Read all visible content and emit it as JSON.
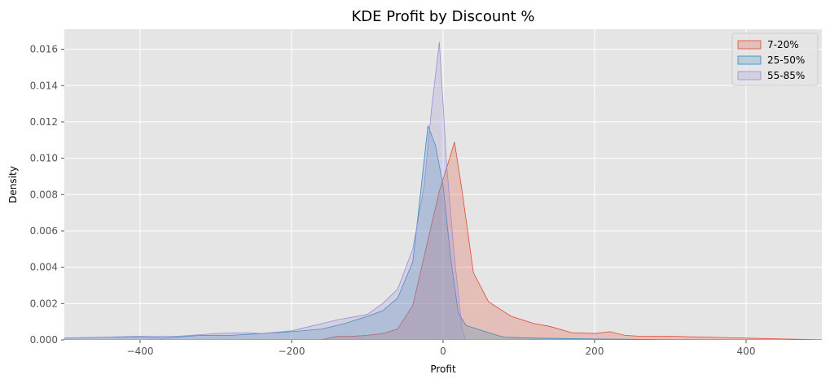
{
  "chart_data": {
    "type": "area",
    "title": "KDE Profit by Discount %",
    "xlabel": "Profit",
    "ylabel": "Density",
    "xlim": [
      -500,
      500
    ],
    "ylim": [
      0,
      0.0171
    ],
    "xticks": [
      -400,
      -200,
      0,
      200,
      400
    ],
    "xtick_labels": [
      "−400",
      "−200",
      "0",
      "200",
      "400"
    ],
    "yticks": [
      0.0,
      0.002,
      0.004,
      0.006,
      0.008,
      0.01,
      0.012,
      0.014,
      0.016
    ],
    "ytick_labels": [
      "0.000",
      "0.002",
      "0.004",
      "0.006",
      "0.008",
      "0.010",
      "0.012",
      "0.014",
      "0.016"
    ],
    "grid": true,
    "legend_position": "top-right",
    "series": [
      {
        "name": "7-20%",
        "fill": "#E24A33",
        "points": [
          [
            -500,
            0
          ],
          [
            -160,
            1e-05
          ],
          [
            -140,
            0.0002
          ],
          [
            -120,
            0.0002
          ],
          [
            -100,
            0.00025
          ],
          [
            -80,
            0.00035
          ],
          [
            -60,
            0.0006
          ],
          [
            -40,
            0.0019
          ],
          [
            -20,
            0.0055
          ],
          [
            -5,
            0.0082
          ],
          [
            5,
            0.0095
          ],
          [
            15,
            0.0109
          ],
          [
            25,
            0.0082
          ],
          [
            40,
            0.0037
          ],
          [
            60,
            0.0021
          ],
          [
            90,
            0.0013
          ],
          [
            120,
            0.0009
          ],
          [
            140,
            0.00075
          ],
          [
            170,
            0.0004
          ],
          [
            200,
            0.00035
          ],
          [
            220,
            0.00045
          ],
          [
            240,
            0.00025
          ],
          [
            260,
            0.0002
          ],
          [
            300,
            0.0002
          ],
          [
            350,
            0.00015
          ],
          [
            400,
            0.0001
          ],
          [
            450,
            5e-05
          ],
          [
            500,
            1e-05
          ]
        ]
      },
      {
        "name": "25-50%",
        "fill": "#348ABD",
        "points": [
          [
            -500,
            0.0001
          ],
          [
            -450,
            0.00015
          ],
          [
            -400,
            0.00015
          ],
          [
            -370,
            0.0001
          ],
          [
            -320,
            0.00025
          ],
          [
            -280,
            0.00025
          ],
          [
            -240,
            0.00035
          ],
          [
            -200,
            0.00045
          ],
          [
            -160,
            0.0006
          ],
          [
            -130,
            0.0009
          ],
          [
            -100,
            0.0013
          ],
          [
            -80,
            0.0016
          ],
          [
            -60,
            0.0023
          ],
          [
            -40,
            0.0043
          ],
          [
            -30,
            0.008
          ],
          [
            -20,
            0.0118
          ],
          [
            -10,
            0.0107
          ],
          [
            0,
            0.0085
          ],
          [
            10,
            0.0045
          ],
          [
            20,
            0.0015
          ],
          [
            30,
            0.0008
          ],
          [
            45,
            0.0006
          ],
          [
            60,
            0.0004
          ],
          [
            80,
            0.00015
          ],
          [
            120,
            0.0001
          ],
          [
            200,
            5e-05
          ],
          [
            300,
            2e-05
          ],
          [
            500,
            0
          ]
        ]
      },
      {
        "name": "55-85%",
        "fill": "#988ED5",
        "points": [
          [
            -500,
            0.0001
          ],
          [
            -400,
            0.0002
          ],
          [
            -350,
            0.0002
          ],
          [
            -300,
            0.00035
          ],
          [
            -260,
            0.0004
          ],
          [
            -240,
            0.00035
          ],
          [
            -200,
            0.0005
          ],
          [
            -160,
            0.0009
          ],
          [
            -140,
            0.0011
          ],
          [
            -100,
            0.0014
          ],
          [
            -80,
            0.002
          ],
          [
            -60,
            0.0028
          ],
          [
            -40,
            0.005
          ],
          [
            -25,
            0.0085
          ],
          [
            -15,
            0.0128
          ],
          [
            -5,
            0.0164
          ],
          [
            5,
            0.0095
          ],
          [
            15,
            0.0045
          ],
          [
            25,
            0.0006
          ],
          [
            30,
            0
          ],
          [
            500,
            0
          ]
        ]
      }
    ]
  }
}
